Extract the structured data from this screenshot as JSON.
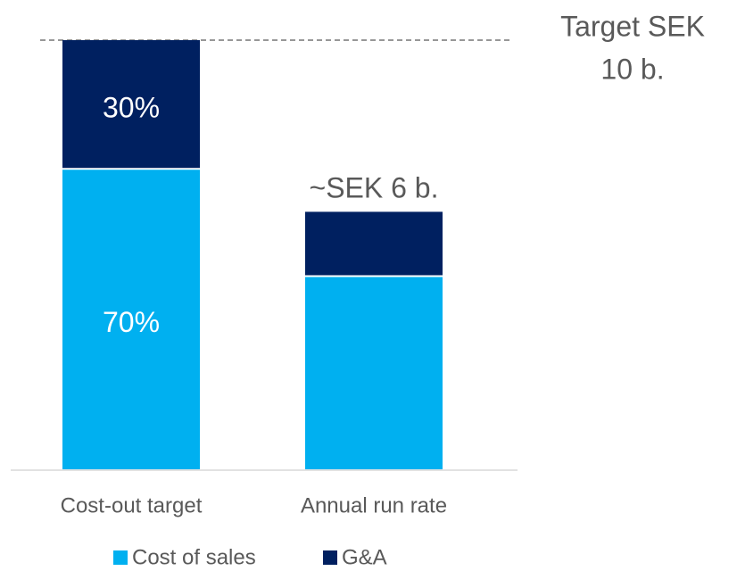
{
  "chart_data": {
    "type": "stacked_bar",
    "categories": [
      "Cost-out target",
      "Annual run rate"
    ],
    "series": [
      {
        "name": "Cost of sales",
        "color": "#00b0f0",
        "values": [
          70,
          45
        ],
        "value_labels": [
          "70%",
          null
        ]
      },
      {
        "name": "G&A",
        "color": "#002060",
        "values": [
          30,
          15
        ],
        "value_labels": [
          "30%",
          null
        ]
      }
    ],
    "ylim": [
      0,
      100
    ],
    "annotations": [
      "Target SEK",
      "10 b.",
      "~SEK 6 b."
    ],
    "legend": "bottom"
  }
}
